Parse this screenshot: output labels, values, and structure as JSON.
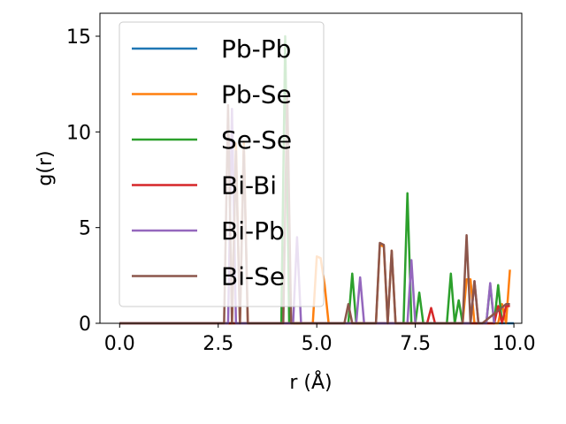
{
  "chart_data": {
    "type": "line",
    "xlabel": "r (Å)",
    "ylabel": "g(r)",
    "xlim": [
      -0.5,
      10.2
    ],
    "ylim": [
      0,
      16.2
    ],
    "xticks": [
      0.0,
      2.5,
      5.0,
      7.5,
      10.0
    ],
    "xtick_labels": [
      "0.0",
      "2.5",
      "5.0",
      "7.5",
      "10.0"
    ],
    "yticks": [
      0,
      5,
      10,
      15
    ],
    "ytick_labels": [
      "0",
      "5",
      "10",
      "15"
    ],
    "grid": false,
    "legend_position": "upper-left",
    "series": [
      {
        "name": "Pb-Pb",
        "color": "#1f77b4",
        "x": [
          0.0,
          10.0
        ],
        "y": [
          0,
          0
        ]
      },
      {
        "name": "Pb-Se",
        "color": "#ff7f0e",
        "x": [
          0.0,
          2.85,
          2.95,
          3.05,
          3.15,
          3.25,
          4.9,
          5.0,
          5.1,
          5.2,
          5.3,
          5.4,
          6.5,
          6.6,
          6.7,
          6.8,
          6.9,
          7.0,
          8.7,
          8.8,
          8.9,
          9.0,
          9.1,
          9.6,
          9.7,
          9.8,
          9.9
        ],
        "y": [
          0,
          0,
          9.4,
          0,
          9.5,
          0,
          0,
          3.5,
          3.4,
          2.0,
          0,
          0,
          0,
          4.1,
          4.0,
          0,
          3.8,
          0,
          0,
          2.3,
          2.3,
          0,
          0,
          0,
          1.0,
          0,
          2.8
        ]
      },
      {
        "name": "Se-Se",
        "color": "#2ca02c",
        "x": [
          0.0,
          4.1,
          4.2,
          4.3,
          5.8,
          5.9,
          6.0,
          7.2,
          7.3,
          7.4,
          7.5,
          7.6,
          7.7,
          8.3,
          8.4,
          8.5,
          8.6,
          8.7,
          9.2,
          9.3,
          9.4,
          9.5,
          9.6,
          9.7
        ],
        "y": [
          0,
          0,
          15.0,
          0,
          0,
          2.6,
          0,
          0,
          6.8,
          0,
          0,
          1.6,
          0,
          0,
          2.6,
          0,
          1.2,
          0,
          0,
          0,
          2.0,
          0,
          2.0,
          0
        ]
      },
      {
        "name": "Bi-Bi",
        "color": "#d62728",
        "x": [
          0.0,
          7.8,
          7.9,
          8.0,
          9.5,
          9.6,
          9.7,
          9.8,
          9.9
        ],
        "y": [
          0,
          0,
          0.8,
          0,
          0,
          0.9,
          0,
          0.9,
          0.9
        ]
      },
      {
        "name": "Bi-Pb",
        "color": "#9467bd",
        "x": [
          0.0,
          2.75,
          2.85,
          2.95,
          4.4,
          4.5,
          4.6,
          6.0,
          6.1,
          6.2,
          7.3,
          7.4,
          7.5,
          8.9,
          9.0,
          9.1,
          9.3,
          9.4,
          9.5
        ],
        "y": [
          0,
          0,
          11.2,
          0,
          0,
          4.5,
          0,
          0,
          2.4,
          0,
          0,
          3.3,
          0,
          0,
          2.2,
          0,
          0,
          2.1,
          0
        ]
      },
      {
        "name": "Bi-Se",
        "color": "#8c564b",
        "x": [
          0.0,
          2.65,
          2.75,
          2.85,
          2.95,
          3.05,
          3.15,
          3.25,
          4.15,
          4.25,
          4.35,
          5.7,
          5.8,
          5.9,
          6.5,
          6.6,
          6.7,
          6.8,
          6.9,
          7.0,
          7.1,
          8.7,
          8.8,
          8.9,
          9.0,
          9.1,
          9.2,
          9.8,
          9.9
        ],
        "y": [
          0,
          0,
          11.4,
          0,
          9.0,
          0,
          9.2,
          0,
          0,
          12.0,
          0,
          0,
          1.0,
          0,
          0,
          4.2,
          4.1,
          0,
          3.8,
          0,
          0,
          0,
          4.6,
          0,
          2.2,
          0,
          0,
          1.0,
          1.0
        ]
      }
    ]
  }
}
